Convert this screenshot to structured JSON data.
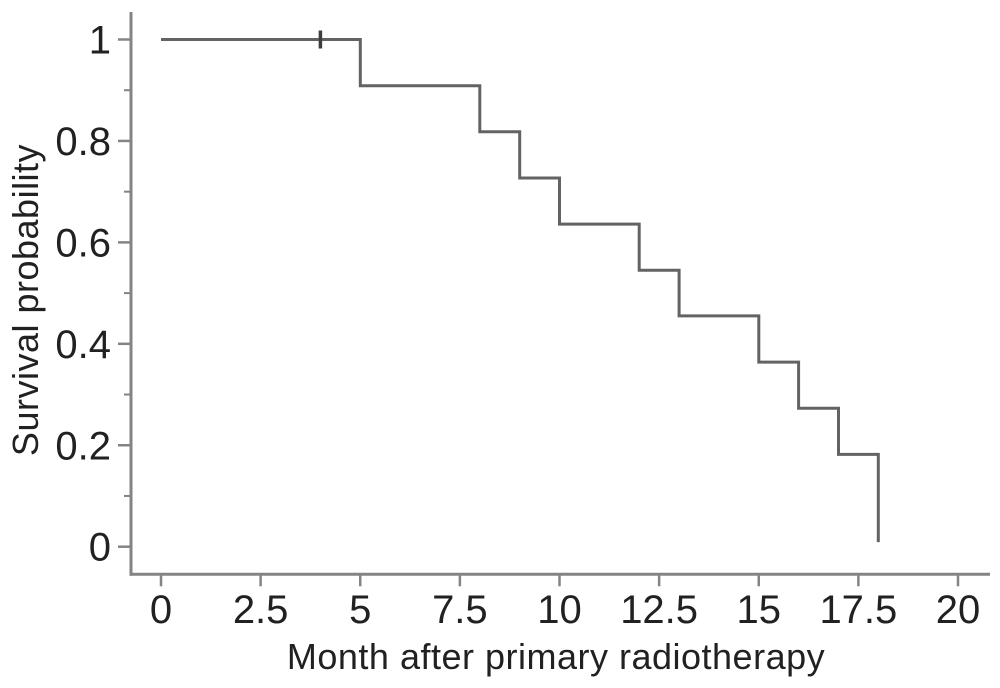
{
  "figure": {
    "background": "#ffffff"
  },
  "chart_data": {
    "type": "line",
    "subtype": "kaplan-meier-step-curve",
    "title": "",
    "xlabel": "Month after primary radiotherapy",
    "ylabel": "Survival probability",
    "grid": false,
    "legend": false,
    "x_axis": {
      "min": 0,
      "max": 20,
      "ticks": [
        0,
        2.5,
        5,
        7.5,
        10,
        12.5,
        15,
        17.5,
        20
      ],
      "tick_labels": [
        "0",
        "2.5",
        "5",
        "7.5",
        "10",
        "12.5",
        "15",
        "17.5",
        "20"
      ]
    },
    "y_axis": {
      "min": 0,
      "max": 1,
      "major_ticks": [
        0,
        0.2,
        0.4,
        0.6,
        0.8,
        1
      ],
      "major_tick_labels": [
        "0",
        "0.2",
        "0.4",
        "0.6",
        "0.8",
        "1"
      ],
      "minor_ticks": [
        0.1,
        0.3,
        0.5,
        0.7,
        0.9
      ]
    },
    "series": [
      {
        "name": "Survival probability",
        "style": "step-after",
        "color": "#636363",
        "points": [
          [
            0,
            1.0
          ],
          [
            5,
            0.909
          ],
          [
            8,
            0.818
          ],
          [
            9,
            0.727
          ],
          [
            10,
            0.636
          ],
          [
            12,
            0.545
          ],
          [
            13,
            0.455
          ],
          [
            15,
            0.364
          ],
          [
            16,
            0.273
          ],
          [
            17,
            0.182
          ],
          [
            18,
            0.009
          ]
        ],
        "censored": [
          [
            4,
            1.0
          ]
        ]
      }
    ]
  },
  "colors": {
    "curve": "#636363",
    "censor_mark": "#3d3d3d",
    "axis": "#848484",
    "text": "#212121"
  }
}
